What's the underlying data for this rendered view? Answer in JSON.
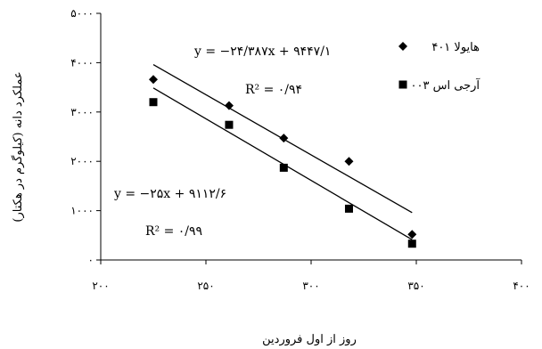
{
  "chart_data": {
    "type": "scatter",
    "title": "",
    "xlabel": "روز از اول فروردین",
    "ylabel": "عملکرد دانه (کیلوگرم در هکتار)",
    "xlim": [
      200,
      400
    ],
    "ylim": [
      0,
      5000
    ],
    "x_ticks": [
      200,
      250,
      300,
      350,
      400
    ],
    "y_ticks": [
      0,
      1000,
      2000,
      3000,
      4000,
      5000
    ],
    "x_tick_labels": [
      "۲۰۰",
      "۲۵۰",
      "۳۰۰",
      "۳۵۰",
      "۴۰۰"
    ],
    "y_tick_labels": [
      "۰",
      "۱۰۰۰",
      "۲۰۰۰",
      "۳۰۰۰",
      "۴۰۰۰",
      "۵۰۰۰"
    ],
    "grid": false,
    "legend_position": "top-right",
    "series": [
      {
        "name": "هایولا ۴۰۱",
        "marker": "diamond",
        "color": "#000000",
        "x": [
          225,
          261,
          287,
          318,
          348
        ],
        "y": [
          3660,
          3130,
          2470,
          2000,
          520
        ],
        "trendline": {
          "slope": -24.387,
          "intercept": 9447.1,
          "x_range": [
            225,
            348
          ],
          "equation": "y = −۲۴/۳۸۷x + ۹۴۴۷/۱",
          "r2": "R² = ۰/۹۴"
        }
      },
      {
        "name": "آرجی اس ۰۰۳",
        "marker": "square",
        "color": "#000000",
        "x": [
          225,
          261,
          287,
          318,
          348
        ],
        "y": [
          3200,
          2740,
          1870,
          1040,
          330
        ],
        "trendline": {
          "slope": -25,
          "intercept": 9112.6,
          "x_range": [
            225,
            348
          ],
          "equation": "y = −۲۵x + ۹۱۱۲/۶",
          "r2": "R² = ۰/۹۹"
        }
      }
    ]
  }
}
